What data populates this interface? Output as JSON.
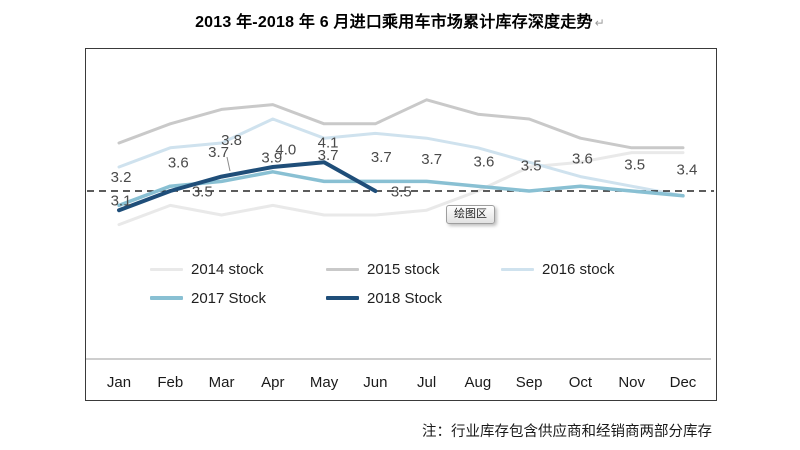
{
  "title": {
    "text": "2013 年-2018 年 6 月进口乘用车市场累计库存深度走势",
    "paragraph_mark": "↵"
  },
  "note": "注：行业库存包含供应商和经销商两部分库存",
  "tooltip": "绘图区",
  "chart_data": {
    "type": "line",
    "categories": [
      "Jan",
      "Feb",
      "Mar",
      "Apr",
      "May",
      "Jun",
      "Jul",
      "Aug",
      "Sep",
      "Oct",
      "Nov",
      "Dec"
    ],
    "series": [
      {
        "name": "2014 stock",
        "color": "#e9e9e9",
        "labeled": false,
        "values": [
          2.8,
          3.2,
          3.0,
          3.2,
          3.0,
          3.0,
          3.1,
          3.5,
          4.0,
          4.1,
          4.3,
          4.3
        ]
      },
      {
        "name": "2015 stock",
        "color": "#c9c9c9",
        "labeled": false,
        "values": [
          4.5,
          4.9,
          5.2,
          5.3,
          4.9,
          4.9,
          5.4,
          5.1,
          5.0,
          4.6,
          4.4,
          4.4
        ]
      },
      {
        "name": "2016 stock",
        "color": "#cfe2ee",
        "labeled": false,
        "values": [
          4.0,
          4.4,
          4.5,
          5.0,
          4.6,
          4.7,
          4.6,
          4.4,
          4.1,
          3.8,
          3.6,
          3.4
        ]
      },
      {
        "name": "2017 Stock",
        "color": "#89c0d3",
        "labeled": true,
        "values": [
          3.2,
          3.6,
          3.7,
          3.9,
          3.7,
          3.7,
          3.7,
          3.6,
          3.5,
          3.6,
          3.5,
          3.4
        ]
      },
      {
        "name": "2018 Stock",
        "color": "#1f4e79",
        "labeled": true,
        "values": [
          3.1,
          3.5,
          3.8,
          4.0,
          4.1,
          3.5
        ]
      }
    ],
    "reference_line": {
      "value": 3.5,
      "style": "dashed"
    },
    "ylim": [
      2.5,
      5.8
    ],
    "gridlines": false,
    "y_axis_visible": false,
    "legend_position": "bottom-inside"
  }
}
